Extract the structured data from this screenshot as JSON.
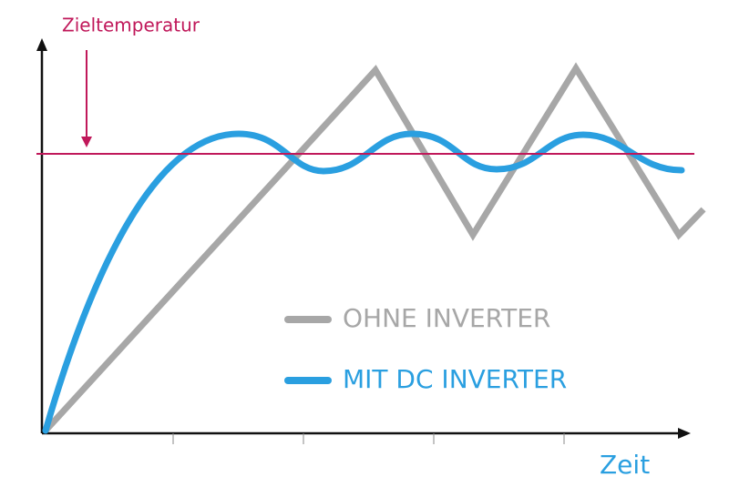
{
  "annotation": "Zieltemperatur",
  "x_axis_label": "Zeit",
  "legend": [
    {
      "name": "OHNE INVERTER"
    },
    {
      "name": "MIT DC INVERTER"
    }
  ]
}
